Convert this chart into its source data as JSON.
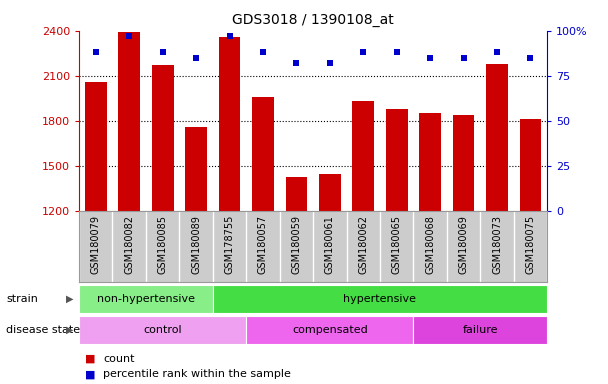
{
  "title": "GDS3018 / 1390108_at",
  "samples": [
    "GSM180079",
    "GSM180082",
    "GSM180085",
    "GSM180089",
    "GSM178755",
    "GSM180057",
    "GSM180059",
    "GSM180061",
    "GSM180062",
    "GSM180065",
    "GSM180068",
    "GSM180069",
    "GSM180073",
    "GSM180075"
  ],
  "counts": [
    2060,
    2390,
    2170,
    1760,
    2360,
    1960,
    1430,
    1450,
    1930,
    1880,
    1850,
    1840,
    2180,
    1810
  ],
  "percentiles": [
    88,
    97,
    88,
    85,
    97,
    88,
    82,
    82,
    88,
    88,
    85,
    85,
    88,
    85
  ],
  "ylim_left": [
    1200,
    2400
  ],
  "ylim_right": [
    0,
    100
  ],
  "yticks_left": [
    1200,
    1500,
    1800,
    2100,
    2400
  ],
  "yticks_right": [
    0,
    25,
    50,
    75,
    100
  ],
  "bar_color": "#cc0000",
  "dot_color": "#0000cc",
  "strain_groups": [
    {
      "label": "non-hypertensive",
      "start": 0,
      "end": 4,
      "color": "#88ee88"
    },
    {
      "label": "hypertensive",
      "start": 4,
      "end": 14,
      "color": "#44dd44"
    }
  ],
  "disease_groups": [
    {
      "label": "control",
      "start": 0,
      "end": 5,
      "color": "#f0a0f0"
    },
    {
      "label": "compensated",
      "start": 5,
      "end": 10,
      "color": "#ee66ee"
    },
    {
      "label": "failure",
      "start": 10,
      "end": 14,
      "color": "#dd44dd"
    }
  ],
  "legend_count_color": "#cc0000",
  "legend_dot_color": "#0000cc",
  "background_color": "#ffffff",
  "grid_color": "#000000",
  "xlabel_bg": "#cccccc"
}
